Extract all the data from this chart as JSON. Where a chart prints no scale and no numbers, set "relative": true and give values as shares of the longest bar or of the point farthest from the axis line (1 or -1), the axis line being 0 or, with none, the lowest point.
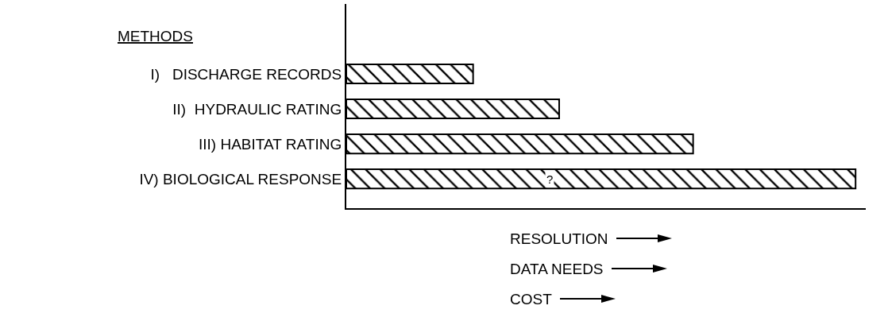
{
  "chart_data": {
    "type": "bar",
    "orientation": "horizontal",
    "relative": true,
    "ylabel": "METHODS",
    "categories": [
      "I)   DISCHARGE RECORDS",
      "II)  HYDRAULIC RATING",
      "III) HABITAT RATING",
      "IV) BIOLOGICAL RESPONSE"
    ],
    "values": [
      0.249,
      0.418,
      0.681,
      1
    ],
    "color": "#000000",
    "annotations": [
      {
        "text": "?",
        "x": 0.4,
        "y": "IV) BIOLOGICAL RESPONSE"
      },
      "RESOLUTION",
      "DATA NEEDS",
      "COST"
    ]
  }
}
